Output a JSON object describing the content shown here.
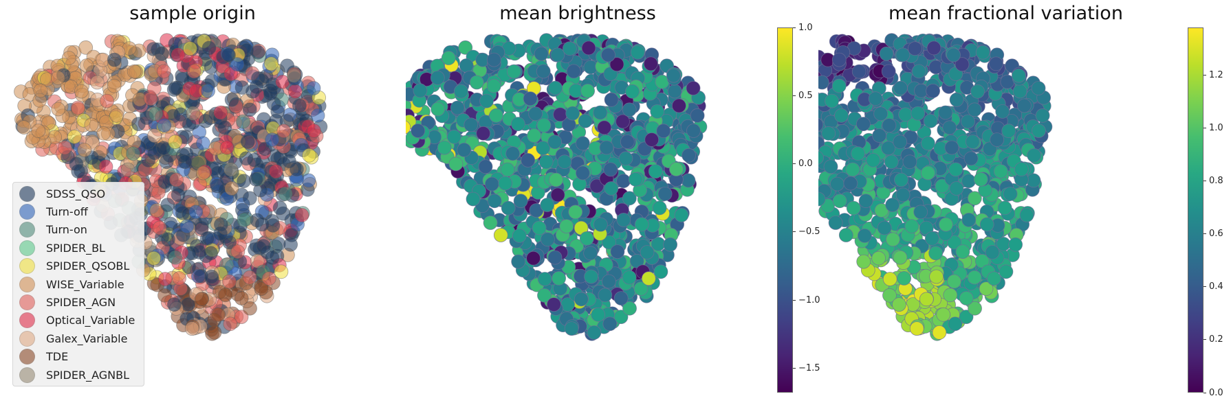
{
  "chart_data": [
    {
      "type": "scatter",
      "title": "sample origin",
      "axes_visible": false,
      "legend_position": "lower-left",
      "legend": [
        {
          "name": "SDSS_QSO",
          "color": "#1f3a5c"
        },
        {
          "name": "Turn-off",
          "color": "#2e63b8"
        },
        {
          "name": "Turn-on",
          "color": "#4f8a7a"
        },
        {
          "name": "SPIDER_BL",
          "color": "#5cc98a"
        },
        {
          "name": "SPIDER_QSOBL",
          "color": "#f0e040"
        },
        {
          "name": "WISE_Variable",
          "color": "#d09055"
        },
        {
          "name": "SPIDER_AGN",
          "color": "#e0605a"
        },
        {
          "name": "Optical_Variable",
          "color": "#e02d4a"
        },
        {
          "name": "Galex_Variable",
          "color": "#e0aa85"
        },
        {
          "name": "TDE",
          "color": "#8a4a28"
        },
        {
          "name": "SPIDER_AGNBL",
          "color": "#968a75"
        }
      ]
    },
    {
      "type": "scatter",
      "title": "mean brightness",
      "axes_visible": false,
      "colormap": "viridis",
      "colorbar": {
        "range": [
          -1.68,
          1.0
        ],
        "ticks": [
          "1.0",
          "0.5",
          "0.0",
          "−0.5",
          "−1.0",
          "−1.5"
        ],
        "tick_values": [
          1.0,
          0.5,
          0.0,
          -0.5,
          -1.0,
          -1.5
        ]
      }
    },
    {
      "type": "scatter",
      "title": "mean fractional variation",
      "axes_visible": false,
      "colormap": "viridis",
      "colorbar": {
        "range": [
          0.0,
          1.38
        ],
        "ticks": [
          "1.2",
          "1.0",
          "0.8",
          "0.6",
          "0.4",
          "0.2",
          "0.0"
        ],
        "tick_values": [
          1.2,
          1.0,
          0.8,
          0.6,
          0.4,
          0.2,
          0.0
        ]
      }
    }
  ]
}
